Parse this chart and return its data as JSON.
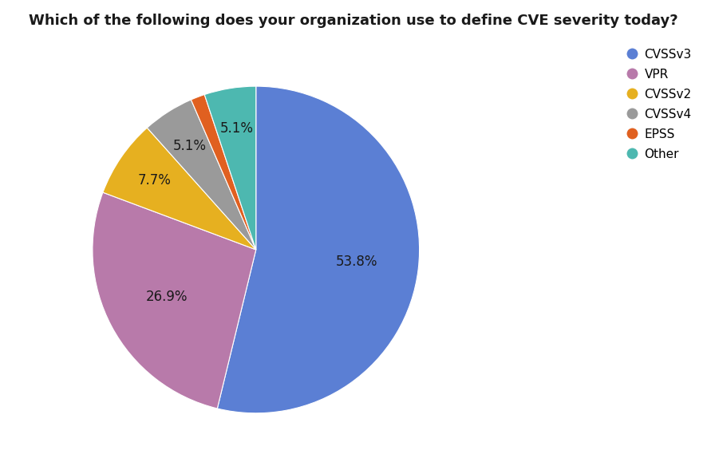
{
  "title": "Which of the following does your organization use to define CVE severity today?",
  "labels": [
    "CVSSv3",
    "VPR",
    "CVSSv2",
    "CVSSv4",
    "EPSS",
    "Other"
  ],
  "values": [
    53.8,
    26.9,
    7.7,
    5.1,
    1.4,
    5.1
  ],
  "colors": [
    "#5b7fd4",
    "#b87aaa",
    "#e6b020",
    "#9a9a9a",
    "#e06020",
    "#4db8b0"
  ],
  "autopct_labels": [
    "53.8%",
    "26.9%",
    "7.7%",
    "5.1%",
    "",
    "5.1%"
  ],
  "title_fontsize": 13,
  "label_fontsize": 12,
  "background_color": "#ffffff",
  "startangle": 90
}
